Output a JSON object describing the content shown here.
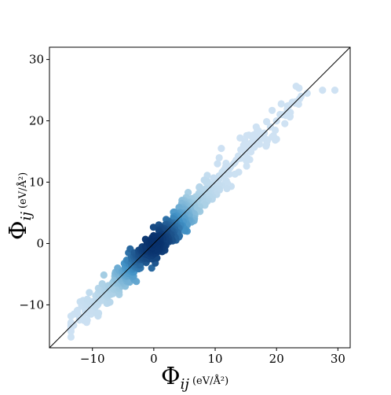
{
  "chart_data": {
    "type": "scatter",
    "title": "",
    "xlabel": {
      "symbol": "Φ",
      "subscript": "ij",
      "unit": "(eV/Å²)"
    },
    "ylabel": {
      "symbol": "Φ",
      "subscript": "ij",
      "unit": "(eV/Å²)"
    },
    "xlim": [
      -17,
      32
    ],
    "ylim": [
      -17,
      32
    ],
    "xticks": [
      -10,
      0,
      10,
      20,
      30
    ],
    "yticks": [
      -10,
      0,
      10,
      20,
      30
    ],
    "xtick_labels": [
      "−10",
      "0",
      "10",
      "20",
      "30"
    ],
    "ytick_labels": [
      "−10",
      "0",
      "10",
      "20",
      "30"
    ],
    "grid": false,
    "legend": "none",
    "reference_line": {
      "description": "y = x diagonal",
      "from": [
        -17,
        -17
      ],
      "to": [
        32,
        32
      ],
      "color": "#000000"
    },
    "density_colormap": [
      "#cfe2f3",
      "#9ecae1",
      "#4292c6",
      "#08306b"
    ],
    "point_count": 700,
    "series": [
      {
        "x": [
          -13.0,
          -12.0,
          -12.5,
          -11.0,
          -10.5,
          -10.0,
          -9.0,
          -8.0,
          -7.0,
          -6.0,
          -5.0,
          -4.0,
          -3.0,
          -2.0,
          -1.0,
          0.0,
          1.0,
          2.0,
          3.0,
          4.0,
          5.0,
          6.0,
          7.0,
          8.0,
          9.0,
          10.0,
          11.0,
          12.0,
          13.0,
          14.0,
          15.0,
          16.0,
          17.0,
          18.0,
          19.0,
          20.0,
          21.0,
          22.0,
          23.0,
          24.0,
          25.0,
          27.5,
          29.5,
          11.0,
          5.0,
          2.0,
          20.0
        ],
        "y": [
          -11.5,
          -9.5,
          -11.0,
          -10.0,
          -8.0,
          -9.5,
          -8.5,
          -7.5,
          -7.0,
          -6.0,
          -5.0,
          -4.0,
          -3.0,
          -2.0,
          -1.0,
          0.0,
          1.0,
          2.0,
          3.0,
          4.0,
          5.0,
          6.0,
          7.0,
          8.0,
          9.0,
          10.0,
          11.0,
          12.0,
          13.0,
          14.0,
          15.0,
          16.0,
          17.0,
          18.0,
          19.0,
          20.0,
          21.0,
          22.5,
          23.0,
          24.0,
          24.5,
          25.0,
          25.0,
          15.5,
          7.0,
          0.5,
          17.0
        ]
      }
    ]
  }
}
